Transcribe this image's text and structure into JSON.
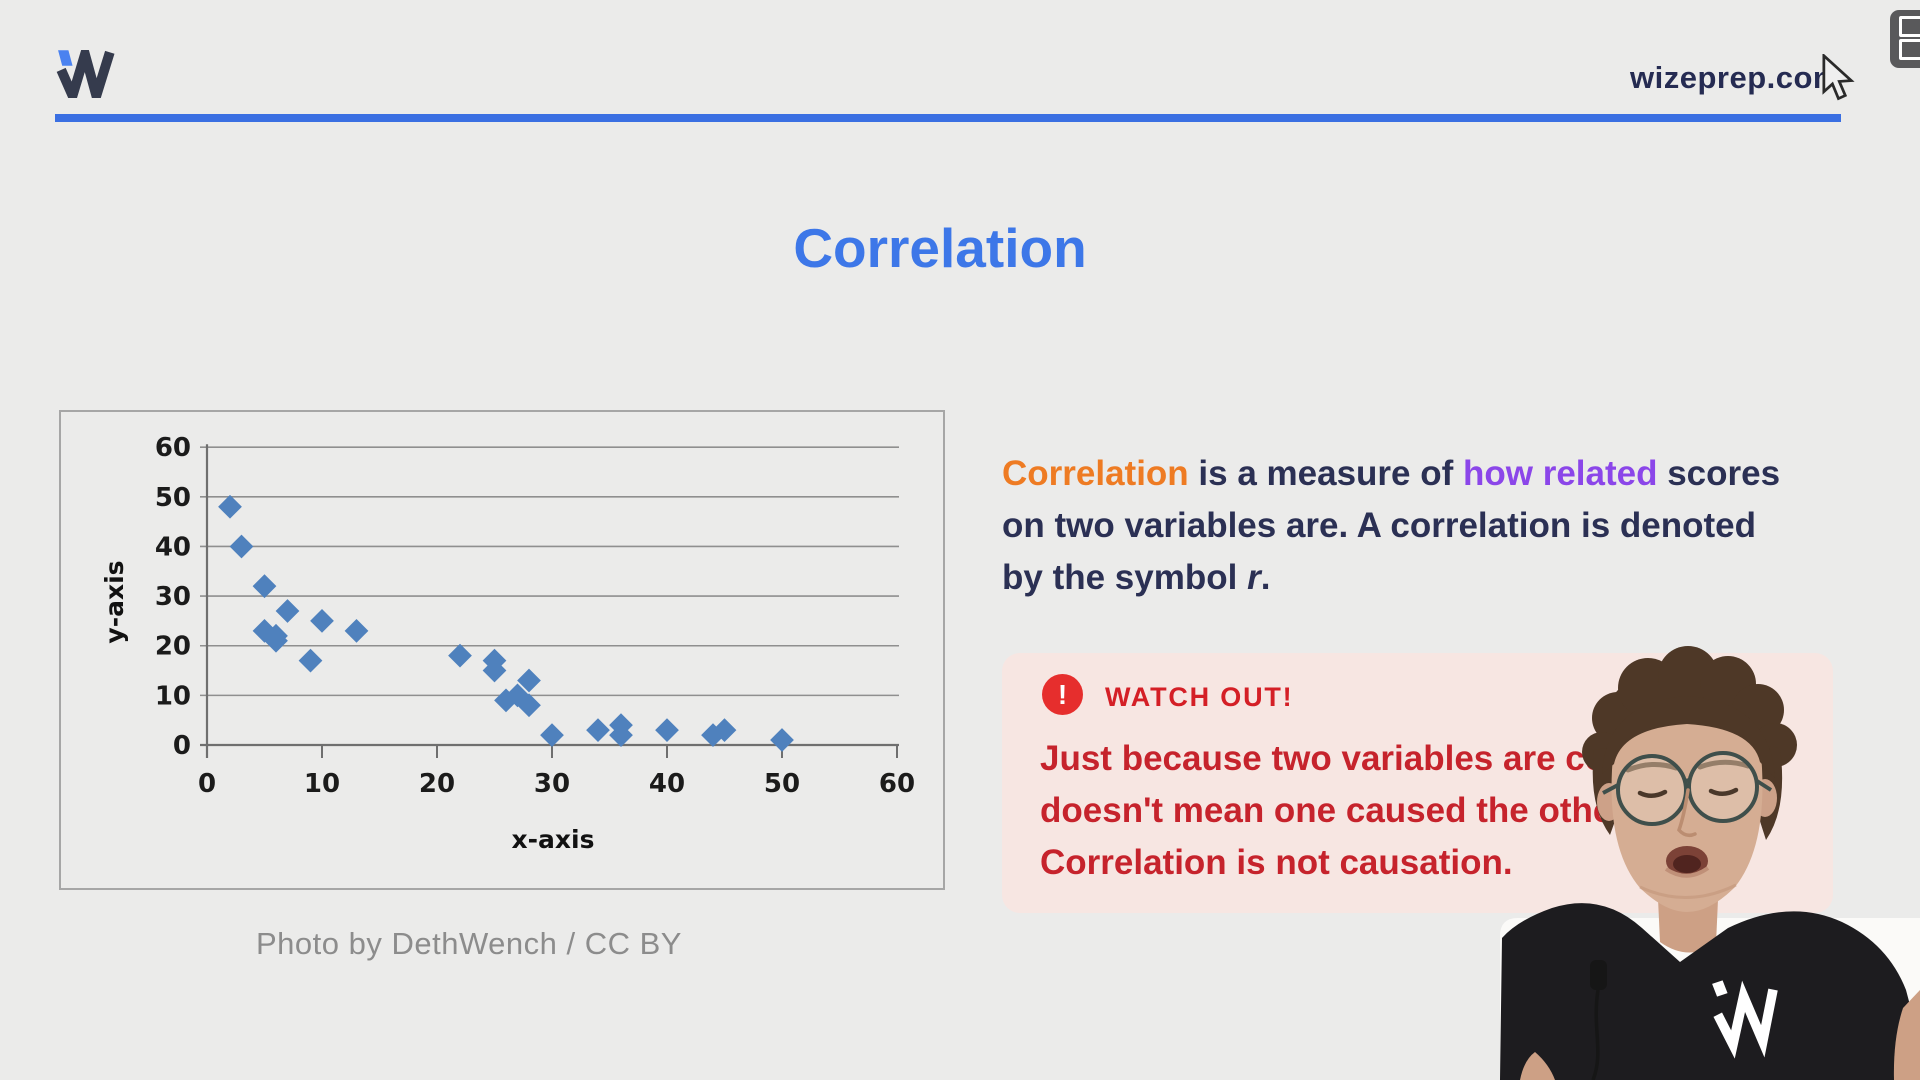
{
  "header": {
    "brand": "wizeprep.com",
    "logo_icon": "wizeprep-w-logo",
    "logo_navy": "#353b4d",
    "logo_blue": "#4a82f0",
    "rule_color": "#3a6fe2"
  },
  "overlay": {
    "pip_button_icon": "pip-panels-icon",
    "cursor_icon": "arrow-cursor"
  },
  "title": {
    "text": "Correlation",
    "color": "#3d77e8"
  },
  "chart_data": {
    "type": "scatter",
    "title": "",
    "xlabel": "x-axis",
    "ylabel": "y-axis",
    "xlim": [
      0,
      60
    ],
    "ylim": [
      0,
      60
    ],
    "xticks": [
      0,
      10,
      20,
      30,
      40,
      50,
      60
    ],
    "yticks": [
      0,
      10,
      20,
      30,
      40,
      50,
      60
    ],
    "grid": "horizontal",
    "legend": "none",
    "marker": "diamond",
    "point_color": "#4f81bd",
    "points": [
      [
        2,
        48
      ],
      [
        3,
        40
      ],
      [
        5,
        32
      ],
      [
        7,
        27
      ],
      [
        5,
        23
      ],
      [
        6,
        22
      ],
      [
        6,
        21
      ],
      [
        10,
        25
      ],
      [
        9,
        17
      ],
      [
        13,
        23
      ],
      [
        22,
        18
      ],
      [
        25,
        17
      ],
      [
        25,
        15
      ],
      [
        28,
        13
      ],
      [
        27,
        10
      ],
      [
        26,
        9
      ],
      [
        28,
        8
      ],
      [
        30,
        2
      ],
      [
        34,
        3
      ],
      [
        36,
        4
      ],
      [
        36,
        2
      ],
      [
        40,
        3
      ],
      [
        44,
        2
      ],
      [
        45,
        3
      ],
      [
        50,
        1
      ]
    ]
  },
  "caption": {
    "text": "Photo by DethWench / CC BY",
    "color": "#8c8c8c"
  },
  "paragraph": {
    "default_color": "#2b3054",
    "highlight_orange": "#ee7b23",
    "highlight_purple": "#8b46e9",
    "lines": [
      [
        {
          "t": "Correlation",
          "c": "orange"
        },
        {
          "t": " is a measure of "
        },
        {
          "t": "how related",
          "c": "purple"
        },
        {
          "t": " scores"
        }
      ],
      [
        {
          "t": "on two variables are. A correlation is denoted"
        }
      ],
      [
        {
          "t": "by the symbol "
        },
        {
          "t": "r",
          "i": true
        },
        {
          "t": "."
        }
      ]
    ]
  },
  "watch_out": {
    "icon": "exclamation-circle-icon",
    "icon_glyph": "!",
    "icon_color": "#e62e2d",
    "label": "WATCH OUT!",
    "label_color": "#d41f26",
    "box_color": "#f7e6e2",
    "body_color": "#c6232c",
    "lines": [
      "Just because two variables are correlated",
      "doesn't mean one caused the other.",
      "Correlation is not causation."
    ]
  },
  "presenter": {
    "webcam": "presenter-webcam-cutout",
    "shirt_logo_icon": "wizeprep-w-logo-white"
  }
}
